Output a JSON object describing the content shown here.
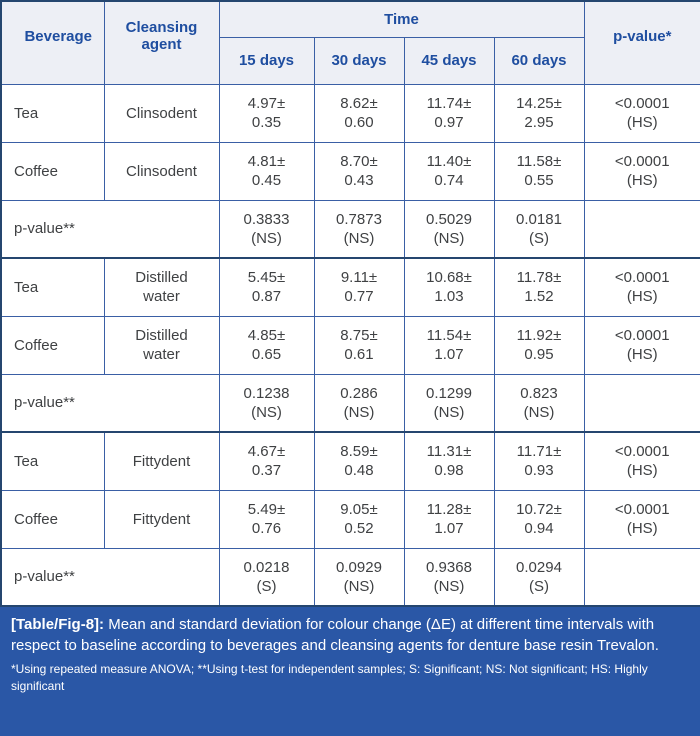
{
  "colors": {
    "outer_border": "#25466f",
    "inner_border": "#3a5fa5",
    "header_bg": "#edeff5",
    "header_text": "#1f4ea0",
    "body_text": "#3f4143",
    "caption_bg": "#2a57a6",
    "caption_text": "#ffffff"
  },
  "table": {
    "header": {
      "beverage": "Beverage",
      "cleansing_agent": "Cleansing agent",
      "time": "Time",
      "time_columns": [
        "15 days",
        "30 days",
        "45 days",
        "60 days"
      ],
      "p_value": "p-value*"
    },
    "rows": [
      {
        "kind": "data",
        "group_start": false,
        "beverage": "Tea",
        "agent": [
          "Clinsodent"
        ],
        "cells": [
          [
            "4.97±",
            "0.35"
          ],
          [
            "8.62±",
            "0.60"
          ],
          [
            "11.74±",
            "0.97"
          ],
          [
            "14.25±",
            "2.95"
          ]
        ],
        "p": [
          "<0.0001",
          "(HS)"
        ]
      },
      {
        "kind": "data",
        "group_start": false,
        "beverage": "Coffee",
        "agent": [
          "Clinsodent"
        ],
        "cells": [
          [
            "4.81±",
            "0.45"
          ],
          [
            "8.70±",
            "0.43"
          ],
          [
            "11.40±",
            "0.74"
          ],
          [
            "11.58±",
            "0.55"
          ]
        ],
        "p": [
          "<0.0001",
          "(HS)"
        ]
      },
      {
        "kind": "p",
        "group_start": false,
        "label": "p-value**",
        "cells": [
          [
            "0.3833",
            "(NS)"
          ],
          [
            "0.7873",
            "(NS)"
          ],
          [
            "0.5029",
            "(NS)"
          ],
          [
            "0.0181",
            "(S)"
          ]
        ]
      },
      {
        "kind": "data",
        "group_start": true,
        "beverage": "Tea",
        "agent": [
          "Distilled",
          "water"
        ],
        "cells": [
          [
            "5.45±",
            "0.87"
          ],
          [
            "9.11±",
            "0.77"
          ],
          [
            "10.68±",
            "1.03"
          ],
          [
            "11.78±",
            "1.52"
          ]
        ],
        "p": [
          "<0.0001",
          "(HS)"
        ]
      },
      {
        "kind": "data",
        "group_start": false,
        "beverage": "Coffee",
        "agent": [
          "Distilled",
          "water"
        ],
        "cells": [
          [
            "4.85±",
            "0.65"
          ],
          [
            "8.75±",
            "0.61"
          ],
          [
            "11.54±",
            "1.07"
          ],
          [
            "11.92±",
            "0.95"
          ]
        ],
        "p": [
          "<0.0001",
          "(HS)"
        ]
      },
      {
        "kind": "p",
        "group_start": false,
        "label": "p-value**",
        "cells": [
          [
            "0.1238",
            "(NS)"
          ],
          [
            "0.286",
            "(NS)"
          ],
          [
            "0.1299",
            "(NS)"
          ],
          [
            "0.823",
            "(NS)"
          ]
        ]
      },
      {
        "kind": "data",
        "group_start": true,
        "beverage": "Tea",
        "agent": [
          "Fittydent"
        ],
        "cells": [
          [
            "4.67±",
            "0.37"
          ],
          [
            "8.59±",
            "0.48"
          ],
          [
            "11.31±",
            "0.98"
          ],
          [
            "11.71±",
            "0.93"
          ]
        ],
        "p": [
          "<0.0001",
          "(HS)"
        ]
      },
      {
        "kind": "data",
        "group_start": false,
        "beverage": "Coffee",
        "agent": [
          "Fittydent"
        ],
        "cells": [
          [
            "5.49±",
            "0.76"
          ],
          [
            "9.05±",
            "0.52"
          ],
          [
            "11.28±",
            "1.07"
          ],
          [
            "10.72±",
            "0.94"
          ]
        ],
        "p": [
          "<0.0001",
          "(HS)"
        ]
      },
      {
        "kind": "p",
        "group_start": false,
        "label": "p-value**",
        "cells": [
          [
            "0.0218",
            "(S)"
          ],
          [
            "0.0929",
            "(NS)"
          ],
          [
            "0.9368",
            "(NS)"
          ],
          [
            "0.0294",
            "(S)"
          ]
        ]
      }
    ]
  },
  "caption": {
    "label": "[Table/Fig-8]:",
    "text": "Mean and standard deviation for colour change (ΔE) at different time intervals with respect to baseline according to beverages and cleansing agents for denture base resin Trevalon."
  },
  "footnote": "*Using repeated measure ANOVA; **Using t-test for independent samples; S: Significant; NS: Not significant; HS: Highly significant",
  "chart_data": {
    "type": "table",
    "title": "[Table/Fig-8] Mean and standard deviation for colour change (ΔE) at different time intervals with respect to baseline according to beverages and cleansing agents for denture base resin Trevalon",
    "columns": [
      "Beverage",
      "Cleansing agent",
      "15 days",
      "30 days",
      "45 days",
      "60 days",
      "p-value*"
    ],
    "rows": [
      [
        "Tea",
        "Clinsodent",
        "4.97±0.35",
        "8.62±0.60",
        "11.74±0.97",
        "14.25±2.95",
        "<0.0001 (HS)"
      ],
      [
        "Coffee",
        "Clinsodent",
        "4.81±0.45",
        "8.70±0.43",
        "11.40±0.74",
        "11.58±0.55",
        "<0.0001 (HS)"
      ],
      [
        "p-value**",
        "",
        "0.3833 (NS)",
        "0.7873 (NS)",
        "0.5029 (NS)",
        "0.0181 (S)",
        ""
      ],
      [
        "Tea",
        "Distilled water",
        "5.45±0.87",
        "9.11±0.77",
        "10.68±1.03",
        "11.78±1.52",
        "<0.0001 (HS)"
      ],
      [
        "Coffee",
        "Distilled water",
        "4.85±0.65",
        "8.75±0.61",
        "11.54±1.07",
        "11.92±0.95",
        "<0.0001 (HS)"
      ],
      [
        "p-value**",
        "",
        "0.1238 (NS)",
        "0.286 (NS)",
        "0.1299 (NS)",
        "0.823 (NS)",
        ""
      ],
      [
        "Tea",
        "Fittydent",
        "4.67±0.37",
        "8.59±0.48",
        "11.31±0.98",
        "11.71±0.93",
        "<0.0001 (HS)"
      ],
      [
        "Coffee",
        "Fittydent",
        "5.49±0.76",
        "9.05±0.52",
        "11.28±1.07",
        "10.72±0.94",
        "<0.0001 (HS)"
      ],
      [
        "p-value**",
        "",
        "0.0218 (S)",
        "0.0929 (NS)",
        "0.9368 (NS)",
        "0.0294 (S)",
        ""
      ]
    ]
  }
}
